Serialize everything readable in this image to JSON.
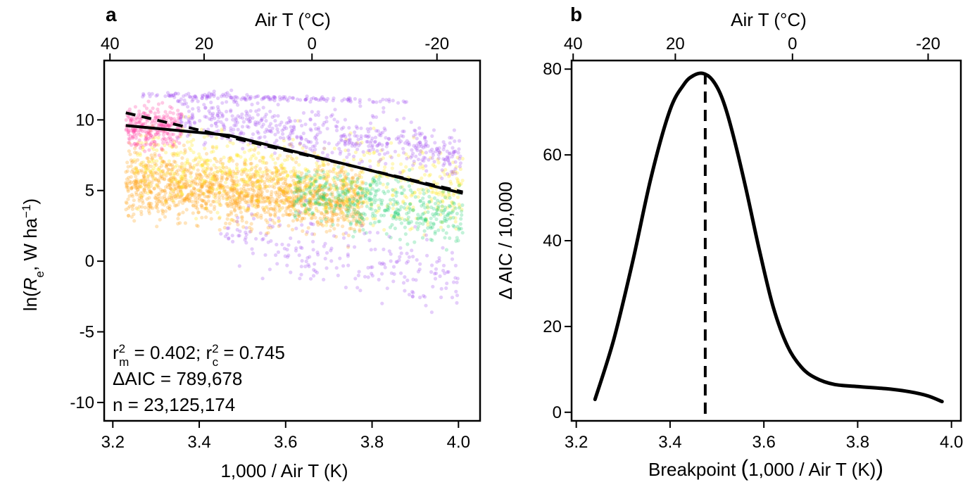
{
  "chart_data": [
    {
      "panel": "a",
      "type": "scatter",
      "xlabel": "1,000 / Air T (K)",
      "top_xlabel": "Air T (°C)",
      "ylabel_parts": {
        "prefix": "ln(",
        "var": "R",
        "sub": "e",
        "mid": ",  W ha",
        "sup": "−1",
        "suffix": ")"
      },
      "xlim": [
        3.18,
        4.05
      ],
      "ylim": [
        -11.3,
        14.2
      ],
      "x_ticks": [
        "3.2",
        "3.4",
        "3.6",
        "3.8",
        "4.0"
      ],
      "x_tick_values": [
        3.2,
        3.4,
        3.6,
        3.8,
        4.0
      ],
      "y_ticks": [
        "10",
        "5",
        "0",
        "-5",
        "-10"
      ],
      "y_tick_values": [
        10,
        5,
        0,
        -5,
        -10
      ],
      "top_ticks": [
        "40",
        "20",
        "0",
        "-20"
      ],
      "top_tick_celsius": [
        40,
        20,
        0,
        -20
      ],
      "point_colors": [
        "#ff3ca0",
        "#ffa014",
        "#ffe614",
        "#28d278",
        "#a050f0"
      ],
      "series": [
        {
          "style": "solid",
          "x": [
            3.23,
            3.47,
            4.01
          ],
          "y": [
            9.6,
            8.9,
            4.8
          ]
        },
        {
          "style": "dashed",
          "x": [
            3.23,
            4.01
          ],
          "y": [
            10.5,
            4.9
          ]
        }
      ],
      "annotations": {
        "r2_line": {
          "r": "r",
          "sup1": "2",
          "sub1": "m",
          "mid": " = 0.402; r",
          "sup2": "2",
          "sub2": "c",
          "end": " = 0.745"
        },
        "aic": "ΔAIC = 789,678",
        "n": "n = 23,125,174"
      },
      "panel_label": "a"
    },
    {
      "panel": "b",
      "type": "line",
      "xlabel_parts": {
        "prefix": "Breakpoint ",
        "open": "(",
        "mid": "1,000 / Air T (K)",
        "close": ")"
      },
      "top_xlabel": "Air T (°C)",
      "ylabel": "Δ AIC / 10,000",
      "xlim": [
        3.19,
        4.02
      ],
      "ylim": [
        -2,
        82
      ],
      "x_ticks": [
        "3.2",
        "3.4",
        "3.6",
        "3.8",
        "4.0"
      ],
      "x_tick_values": [
        3.2,
        3.4,
        3.6,
        3.8,
        4.0
      ],
      "y_ticks": [
        "0",
        "20",
        "40",
        "60",
        "80"
      ],
      "y_tick_values": [
        0,
        20,
        40,
        60,
        80
      ],
      "top_ticks": [
        "40",
        "20",
        "0",
        "-20"
      ],
      "top_tick_celsius": [
        40,
        20,
        0,
        -20
      ],
      "series": [
        {
          "style": "solid",
          "x": [
            3.24,
            3.28,
            3.32,
            3.36,
            3.4,
            3.43,
            3.45,
            3.47,
            3.49,
            3.51,
            3.53,
            3.56,
            3.59,
            3.62,
            3.65,
            3.68,
            3.71,
            3.75,
            3.8,
            3.86,
            3.91,
            3.95,
            3.98
          ],
          "y": [
            3.0,
            17.0,
            35.0,
            55.0,
            70.5,
            76.5,
            78.5,
            79.0,
            77.5,
            73.5,
            66.5,
            53.0,
            38.0,
            24.5,
            15.5,
            10.5,
            8.0,
            6.5,
            6.0,
            5.5,
            4.8,
            3.8,
            2.5
          ]
        }
      ],
      "breakpoint_x": 3.475,
      "panel_label": "b"
    }
  ]
}
